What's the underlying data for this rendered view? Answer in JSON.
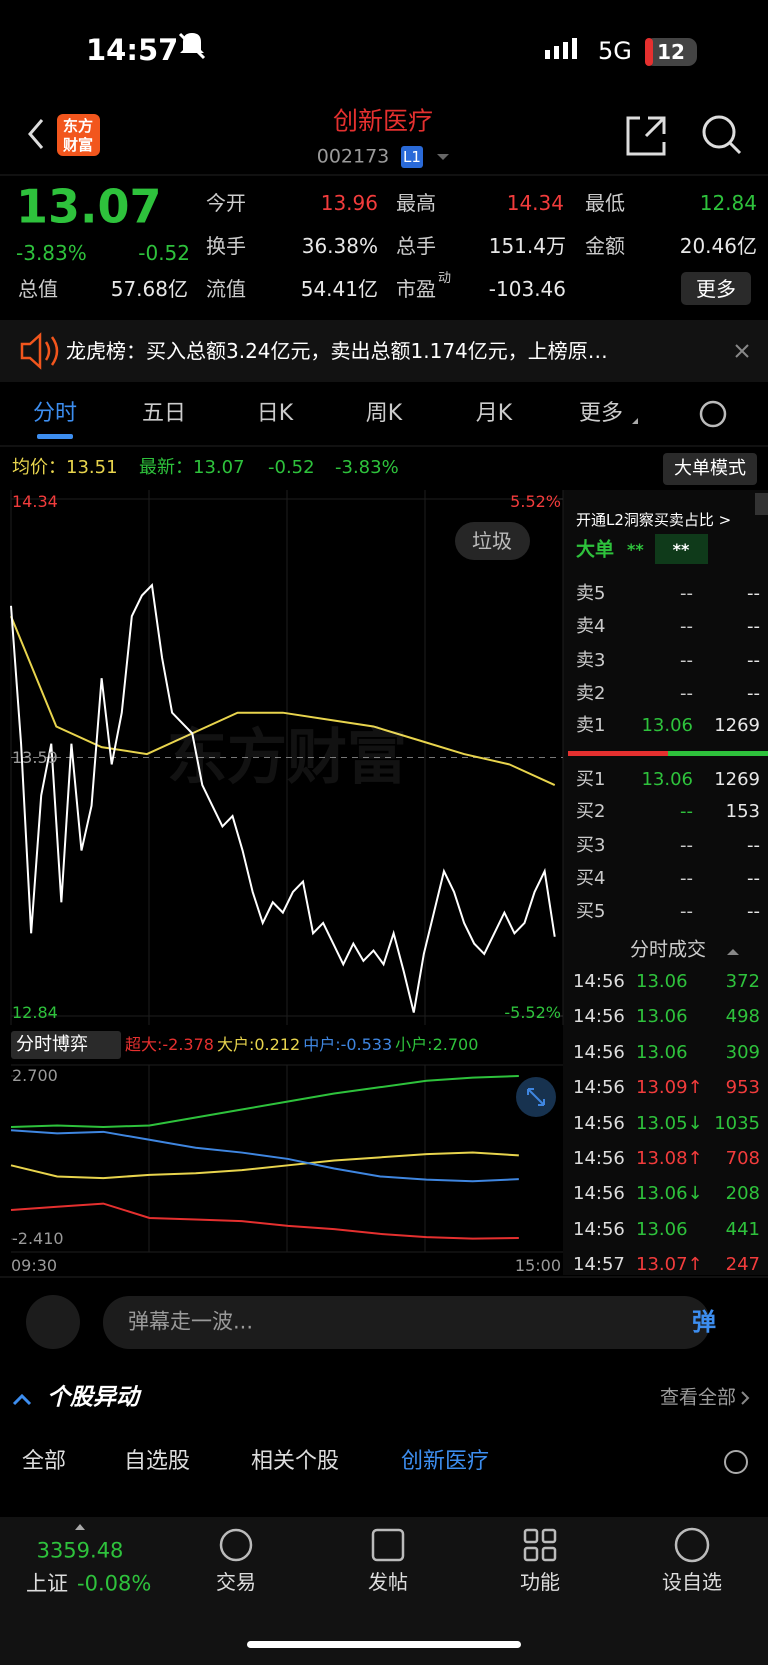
{
  "status_bar": {
    "time": "14:57",
    "network": "5G",
    "battery": "12"
  },
  "header": {
    "logo": [
      "东方",
      "财富"
    ],
    "title": "创新医疗",
    "code": "002173",
    "level": "L1"
  },
  "quote": {
    "price": "13.07",
    "change_pct": "-3.83%",
    "change": "-0.52",
    "more": "更多",
    "fields": [
      {
        "label": "今开",
        "value": "13.96",
        "color": "#f23c3c"
      },
      {
        "label": "最高",
        "value": "14.34",
        "color": "#f23c3c"
      },
      {
        "label": "最低",
        "value": "12.84",
        "color": "#2ec23c"
      },
      {
        "label": "换手",
        "value": "36.38%",
        "color": "#e8e8e8"
      },
      {
        "label": "总手",
        "value": "151.4万",
        "color": "#e8e8e8"
      },
      {
        "label": "金额",
        "value": "20.46亿",
        "color": "#e8e8e8"
      },
      {
        "label": "总值",
        "value": "57.68亿",
        "color": "#e8e8e8"
      },
      {
        "label": "流值",
        "value": "54.41亿",
        "color": "#e8e8e8"
      },
      {
        "label": "市盈",
        "label_sup": "动",
        "value": "-103.46",
        "color": "#e8e8e8"
      }
    ]
  },
  "notice": "龙虎榜：买入总额3.24亿元，卖出总额1.174亿元，上榜原…",
  "tabs": [
    "分时",
    "五日",
    "日K",
    "周K",
    "月K",
    "更多"
  ],
  "info": {
    "avg": "均价：13.51",
    "latest": "最新：13.07",
    "change": "-0.52",
    "change_pct": "-3.83%",
    "mode": "大单模式"
  },
  "price_chart": {
    "type": "line",
    "ylim": [
      12.84,
      14.34
    ],
    "yticks": [
      14.34,
      13.59,
      12.84
    ],
    "y2lim": [
      -5.52,
      5.52
    ],
    "y2ticks": [
      {
        "value": 5.52,
        "label": "5.52%"
      },
      {
        "value": -5.52,
        "label": "-5.52%"
      }
    ],
    "watermark": "东方财富",
    "bubble": "垃圾",
    "series": [
      {
        "name": "最新",
        "color": "#ffffff",
        "values": [
          14.03,
          13.63,
          13.08,
          13.48,
          13.63,
          13.17,
          13.63,
          13.32,
          13.45,
          13.82,
          13.57,
          13.72,
          14.0,
          14.06,
          14.09,
          13.88,
          13.72,
          13.69,
          13.66,
          13.51,
          13.45,
          13.39,
          13.42,
          13.32,
          13.2,
          13.11,
          13.17,
          13.14,
          13.2,
          13.23,
          13.08,
          13.11,
          13.05,
          12.99,
          13.05,
          13.0,
          13.03,
          12.99,
          13.08,
          12.97,
          12.85,
          13.02,
          13.14,
          13.26,
          13.2,
          13.11,
          13.05,
          13.02,
          13.08,
          13.14,
          13.08,
          13.11,
          13.2,
          13.26,
          13.07
        ]
      },
      {
        "name": "均价",
        "color": "#e8d44d",
        "values": [
          14.0,
          13.68,
          13.62,
          13.6,
          13.66,
          13.72,
          13.72,
          13.7,
          13.68,
          13.64,
          13.6,
          13.57,
          13.51
        ]
      }
    ]
  },
  "order_book": {
    "promo": "开通L2洞察买卖占比 >",
    "big": "大单",
    "big_v1": "**",
    "big_v2": "**",
    "asks": [
      [
        "卖5",
        "--",
        "--"
      ],
      [
        "卖4",
        "--",
        "--"
      ],
      [
        "卖3",
        "--",
        "--"
      ],
      [
        "卖2",
        "--",
        "--"
      ],
      [
        "卖1",
        "13.06",
        "1269"
      ]
    ],
    "bids": [
      [
        "买1",
        "13.06",
        "1269"
      ],
      [
        "买2",
        "--",
        "153"
      ],
      [
        "买3",
        "--",
        "--"
      ],
      [
        "买4",
        "--",
        "--"
      ],
      [
        "买5",
        "--",
        "--"
      ]
    ],
    "trades_title": "分时成交",
    "trades": [
      {
        "time": "14:56",
        "price": "13.06",
        "vol": "372",
        "color": "#2ec23c"
      },
      {
        "time": "14:56",
        "price": "13.06",
        "vol": "498",
        "color": "#2ec23c"
      },
      {
        "time": "14:56",
        "price": "13.06",
        "vol": "309",
        "color": "#2ec23c"
      },
      {
        "time": "14:56",
        "price": "13.09↑",
        "vol": "953",
        "color": "#f23c3c"
      },
      {
        "time": "14:56",
        "price": "13.05↓",
        "vol": "1035",
        "color": "#2ec23c"
      },
      {
        "time": "14:56",
        "price": "13.08↑",
        "vol": "708",
        "color": "#f23c3c"
      },
      {
        "time": "14:56",
        "price": "13.06↓",
        "vol": "208",
        "color": "#2ec23c"
      },
      {
        "time": "14:56",
        "price": "13.06",
        "vol": "441",
        "color": "#2ec23c"
      },
      {
        "time": "14:57",
        "price": "13.07↑",
        "vol": "247",
        "color": "#f23c3c"
      }
    ]
  },
  "flow_chart": {
    "type": "line",
    "title": "分时博弈",
    "ylim": [
      -2.41,
      2.7
    ],
    "yticks": [
      {
        "value": 2.7,
        "label": "2.700"
      },
      {
        "value": -2.41,
        "label": "-2.410"
      }
    ],
    "xticks": [
      "09:30",
      "15:00"
    ],
    "series": [
      {
        "name": "超大",
        "label": "超大:-2.378",
        "color": "#e5302f",
        "values": [
          -1.5,
          -1.4,
          -1.3,
          -1.75,
          -1.8,
          -1.85,
          -2.0,
          -2.1,
          -2.25,
          -2.35,
          -2.4,
          -2.378
        ]
      },
      {
        "name": "大户",
        "label": "大户:0.212",
        "color": "#e8d44d",
        "values": [
          -0.1,
          -0.45,
          -0.5,
          -0.4,
          -0.35,
          -0.25,
          -0.1,
          0.05,
          0.15,
          0.25,
          0.3,
          0.212
        ]
      },
      {
        "name": "中户",
        "label": "中户:-0.533",
        "color": "#3f86e0",
        "values": [
          1.0,
          0.9,
          0.95,
          0.7,
          0.45,
          0.3,
          0.1,
          -0.2,
          -0.45,
          -0.55,
          -0.6,
          -0.533
        ]
      },
      {
        "name": "小户",
        "label": "小户:2.700",
        "color": "#2ec23c",
        "values": [
          1.1,
          1.15,
          1.1,
          1.15,
          1.4,
          1.65,
          1.9,
          2.15,
          2.35,
          2.55,
          2.65,
          2.7
        ]
      }
    ]
  },
  "comment": {
    "placeholder": "弹幕走一波...",
    "button": "弹"
  },
  "movers": {
    "title": "个股异动",
    "view_all": "查看全部",
    "tabs": [
      "全部",
      "自选股",
      "相关个股",
      "创新医疗"
    ]
  },
  "bottom_nav": {
    "index_value": "3359.48",
    "index_name": "上证",
    "index_change": "-0.08%",
    "items": [
      "交易",
      "发帖",
      "功能",
      "设自选"
    ]
  }
}
